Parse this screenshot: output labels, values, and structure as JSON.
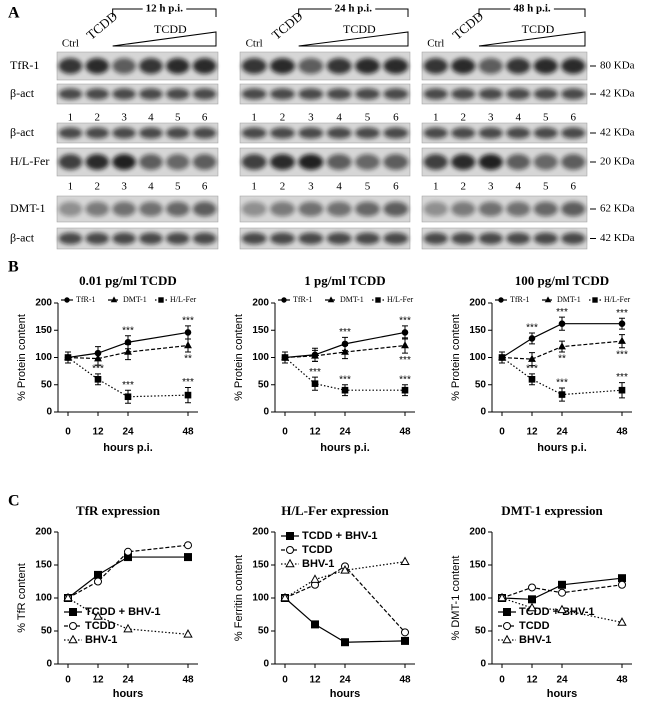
{
  "panel_a": {
    "label": "A",
    "columns": [
      {
        "ctrl": "Ctrl",
        "tcdd": "TCDD",
        "time": "12 h p.i.",
        "tcdd_dose": "TCDD"
      },
      {
        "ctrl": "Ctrl",
        "tcdd": "TCDD",
        "time": "24 h p.i.",
        "tcdd_dose": "TCDD"
      },
      {
        "ctrl": "Ctrl",
        "tcdd": "TCDD",
        "time": "48 h p.i.",
        "tcdd_dose": "TCDD"
      }
    ],
    "lanes": [
      1,
      2,
      3,
      4,
      5,
      6
    ],
    "rows": [
      {
        "name": "TfR-1",
        "size": "80 KDa"
      },
      {
        "name": "β-act",
        "size": "42 KDa"
      },
      {
        "name": "β-act",
        "size": "42 KDa"
      },
      {
        "name": "H/L-Fer",
        "size": "20 KDa"
      },
      {
        "name": "DMT-1",
        "size": "62 KDa"
      },
      {
        "name": "β-act",
        "size": "42 KDa"
      }
    ]
  },
  "panel_b_label": "B",
  "panel_c_label": "C",
  "chart_data": [
    {
      "type": "line",
      "title": "0.01 pg/ml TCDD",
      "xlabel": "hours p.i.",
      "ylabel": "% Protein content",
      "x": [
        0,
        12,
        24,
        48
      ],
      "xlim": [
        -4,
        52
      ],
      "xticks": [
        0,
        12,
        24,
        48
      ],
      "ylim": [
        0,
        200
      ],
      "yticks": [
        0,
        50,
        100,
        150,
        200
      ],
      "legend": "top",
      "series": [
        {
          "name": "TfR-1",
          "color": "#000000",
          "marker": "circle",
          "dash": "solid",
          "values": [
            100,
            108,
            128,
            146
          ],
          "errors": [
            10,
            12,
            12,
            12
          ],
          "annotations": [
            null,
            null,
            "***",
            "***"
          ]
        },
        {
          "name": "DMT-1",
          "color": "#000000",
          "marker": "triangle",
          "dash": "dashed",
          "values": [
            100,
            98,
            110,
            122
          ],
          "errors": [
            10,
            12,
            14,
            12
          ],
          "annotations": [
            null,
            null,
            null,
            "**"
          ]
        },
        {
          "name": "H/L-Fer",
          "color": "#000000",
          "marker": "square",
          "dash": "dotted",
          "values": [
            100,
            60,
            28,
            31
          ],
          "errors": [
            10,
            10,
            12,
            14
          ],
          "annotations": [
            null,
            "***",
            "***",
            "***"
          ]
        }
      ]
    },
    {
      "type": "line",
      "title": "1 pg/ml TCDD",
      "xlabel": "hours p.i.",
      "ylabel": "% Protein content",
      "x": [
        0,
        12,
        24,
        48
      ],
      "xlim": [
        -4,
        52
      ],
      "xticks": [
        0,
        12,
        24,
        48
      ],
      "ylim": [
        0,
        200
      ],
      "yticks": [
        0,
        50,
        100,
        150,
        200
      ],
      "legend": "top",
      "series": [
        {
          "name": "TfR-1",
          "color": "#000000",
          "marker": "circle",
          "dash": "solid",
          "values": [
            100,
            105,
            125,
            146
          ],
          "errors": [
            10,
            12,
            12,
            12
          ],
          "annotations": [
            null,
            null,
            "***",
            "***"
          ]
        },
        {
          "name": "DMT-1",
          "color": "#000000",
          "marker": "triangle",
          "dash": "dashed",
          "values": [
            100,
            103,
            110,
            122
          ],
          "errors": [
            10,
            10,
            12,
            14
          ],
          "annotations": [
            null,
            null,
            null,
            "***"
          ]
        },
        {
          "name": "H/L-Fer",
          "color": "#000000",
          "marker": "square",
          "dash": "dotted",
          "values": [
            100,
            52,
            40,
            40
          ],
          "errors": [
            10,
            12,
            10,
            10
          ],
          "annotations": [
            null,
            "***",
            "***",
            "***"
          ]
        }
      ]
    },
    {
      "type": "line",
      "title": "100 pg/ml TCDD",
      "xlabel": "hours p.i.",
      "ylabel": "% Protein content",
      "x": [
        0,
        12,
        24,
        48
      ],
      "xlim": [
        -4,
        52
      ],
      "xticks": [
        0,
        12,
        24,
        48
      ],
      "ylim": [
        0,
        200
      ],
      "yticks": [
        0,
        50,
        100,
        150,
        200
      ],
      "legend": "top",
      "series": [
        {
          "name": "TfR-1",
          "color": "#000000",
          "marker": "circle",
          "dash": "solid",
          "values": [
            100,
            135,
            162,
            162
          ],
          "errors": [
            10,
            10,
            12,
            10
          ],
          "annotations": [
            null,
            "***",
            "***",
            "***"
          ]
        },
        {
          "name": "DMT-1",
          "color": "#000000",
          "marker": "triangle",
          "dash": "dashed",
          "values": [
            100,
            97,
            120,
            130
          ],
          "errors": [
            10,
            12,
            10,
            12
          ],
          "annotations": [
            null,
            null,
            "**",
            "***"
          ]
        },
        {
          "name": "H/L-Fer",
          "color": "#000000",
          "marker": "square",
          "dash": "dotted",
          "values": [
            100,
            60,
            32,
            40
          ],
          "errors": [
            10,
            10,
            12,
            14
          ],
          "annotations": [
            null,
            "***",
            "***",
            "***"
          ]
        }
      ]
    },
    {
      "type": "line",
      "title": "TfR expression",
      "xlabel": "hours",
      "ylabel": "% TfR content",
      "x": [
        0,
        12,
        24,
        48
      ],
      "xlim": [
        -4,
        52
      ],
      "xticks": [
        0,
        12,
        24,
        48
      ],
      "ylim": [
        0,
        200
      ],
      "yticks": [
        0,
        50,
        100,
        150,
        200
      ],
      "legend": "lower left",
      "series": [
        {
          "name": "TCDD + BHV-1",
          "color": "#000000",
          "marker": "square",
          "dash": "solid",
          "values": [
            100,
            135,
            162,
            162
          ]
        },
        {
          "name": "TCDD",
          "color": "#000000",
          "marker": "open-circle",
          "dash": "dashed",
          "values": [
            100,
            125,
            170,
            180
          ]
        },
        {
          "name": "BHV-1",
          "color": "#000000",
          "marker": "open-triangle",
          "dash": "dotted",
          "values": [
            100,
            72,
            53,
            45
          ]
        }
      ]
    },
    {
      "type": "line",
      "title": "H/L-Fer expression",
      "xlabel": "hours",
      "ylabel": "% Ferritin content",
      "x": [
        0,
        12,
        24,
        48
      ],
      "xlim": [
        -4,
        52
      ],
      "xticks": [
        0,
        12,
        24,
        48
      ],
      "ylim": [
        0,
        200
      ],
      "yticks": [
        0,
        50,
        100,
        150,
        200
      ],
      "legend": "upper left",
      "series": [
        {
          "name": "TCDD + BHV-1",
          "color": "#000000",
          "marker": "square",
          "dash": "solid",
          "values": [
            100,
            60,
            33,
            35
          ]
        },
        {
          "name": "TCDD",
          "color": "#000000",
          "marker": "open-circle",
          "dash": "dashed",
          "values": [
            100,
            120,
            148,
            48
          ]
        },
        {
          "name": "BHV-1",
          "color": "#000000",
          "marker": "open-triangle",
          "dash": "dotted",
          "values": [
            100,
            128,
            142,
            155
          ]
        }
      ]
    },
    {
      "type": "line",
      "title": "DMT-1 expression",
      "xlabel": "hours",
      "ylabel": "% DMT-1 content",
      "x": [
        0,
        12,
        24,
        48
      ],
      "xlim": [
        -4,
        52
      ],
      "xticks": [
        0,
        12,
        24,
        48
      ],
      "ylim": [
        0,
        200
      ],
      "yticks": [
        0,
        50,
        100,
        150,
        200
      ],
      "legend": "lower left",
      "series": [
        {
          "name": "TCDD + BHV-1",
          "color": "#000000",
          "marker": "square",
          "dash": "solid",
          "values": [
            100,
            98,
            120,
            130
          ]
        },
        {
          "name": "TCDD",
          "color": "#000000",
          "marker": "open-circle",
          "dash": "dashed",
          "values": [
            100,
            116,
            108,
            120
          ]
        },
        {
          "name": "BHV-1",
          "color": "#000000",
          "marker": "open-triangle",
          "dash": "dotted",
          "values": [
            100,
            85,
            82,
            63
          ]
        }
      ]
    }
  ]
}
